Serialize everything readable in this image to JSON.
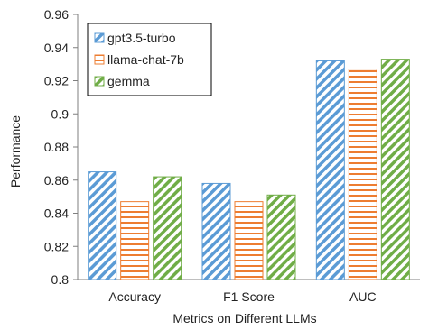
{
  "chart_data": {
    "type": "bar",
    "categories": [
      "Accuracy",
      "F1 Score",
      "AUC"
    ],
    "series": [
      {
        "name": "gpt3.5-turbo",
        "values": [
          0.865,
          0.858,
          0.932
        ],
        "color": "#5B9BD5",
        "pattern": "diagonal-stripes"
      },
      {
        "name": "llama-chat-7b",
        "values": [
          0.847,
          0.847,
          0.927
        ],
        "color": "#ED7D31",
        "pattern": "horizontal-stripes"
      },
      {
        "name": "gemma",
        "values": [
          0.862,
          0.851,
          0.933
        ],
        "color": "#70AD47",
        "pattern": "diagonal-stripes"
      }
    ],
    "xlabel": "Metrics on Different LLMs",
    "ylabel": "Performance",
    "ylim": [
      0.8,
      0.96
    ],
    "yticks": [
      "0.8",
      "0.82",
      "0.84",
      "0.86",
      "0.88",
      "0.9",
      "0.92",
      "0.94",
      "0.96"
    ],
    "grid": false,
    "legend_position": "top-left"
  }
}
